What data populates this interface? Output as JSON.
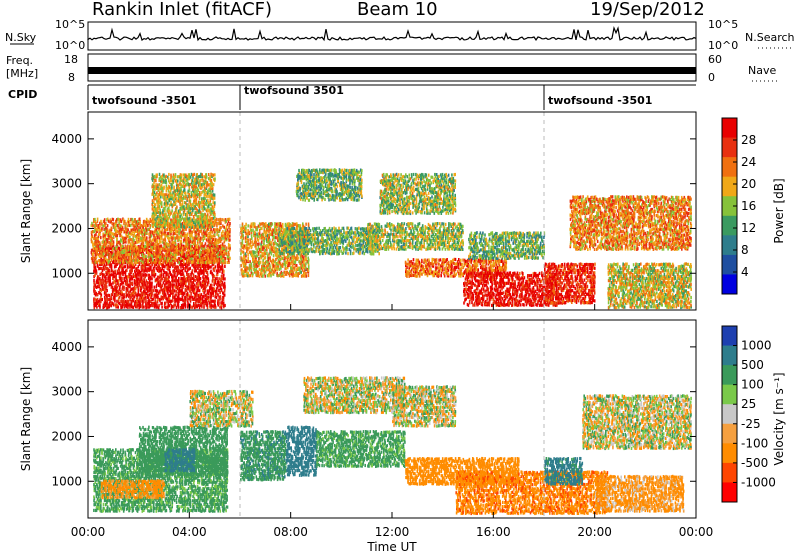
{
  "header": {
    "station": "Rankin Inlet (fitACF)",
    "beam": "Beam 10",
    "date": "19/Sep/2012"
  },
  "noise_panel": {
    "left_label": "N.Sky",
    "right_label": "N.Search",
    "left_ticks": [
      "10^5",
      "10^0"
    ],
    "right_ticks": [
      "10^5",
      "10^0"
    ]
  },
  "freq_panel": {
    "left_label_1": "Freq.",
    "left_label_2": "[MHz]",
    "right_label": "Nave",
    "left_ticks": [
      "18",
      "8"
    ],
    "right_ticks": [
      "60",
      "0"
    ]
  },
  "cpid_panel": {
    "label": "CPID",
    "segments": [
      {
        "start_hour": 0.0,
        "text": "twofsound -3501"
      },
      {
        "start_hour": 6.0,
        "text": "twofsound 3501"
      },
      {
        "start_hour": 18.0,
        "text": "twofsound -3501"
      }
    ]
  },
  "x_axis": {
    "label": "Time UT",
    "ticks": [
      "00:00",
      "04:00",
      "08:00",
      "12:00",
      "16:00",
      "20:00",
      "00:00"
    ],
    "range_hours": [
      0,
      24
    ]
  },
  "colors": {
    "power": [
      "#0000e0",
      "#1f4fa0",
      "#2e7d8c",
      "#3a9a60",
      "#86c23a",
      "#f0a818",
      "#f07010",
      "#e83010",
      "#e80000"
    ],
    "velocity": [
      "#ff0000",
      "#ff4500",
      "#ff8c00",
      "#f5a040",
      "#c8c8c8",
      "#7ac94a",
      "#3a9a5a",
      "#2e7d8c",
      "#1e40b0"
    ]
  },
  "chart_data": [
    {
      "type": "heatmap",
      "title": "Power",
      "xlabel": "Time UT",
      "ylabel": "Slant Range [km]",
      "xlim": [
        0,
        24
      ],
      "ylim": [
        180,
        4600
      ],
      "yticks": [
        "1000",
        "2000",
        "3000",
        "4000"
      ],
      "colorbar_label": "Power [dB]",
      "colorbar_ticks": [
        "28",
        "24",
        "20",
        "16",
        "12",
        "8",
        "4"
      ],
      "bands": [
        {
          "t0": 0.2,
          "t1": 5.4,
          "r0": 200,
          "r1": 1600,
          "value": 28
        },
        {
          "t0": 0.1,
          "t1": 5.6,
          "r0": 1200,
          "r1": 2200,
          "value": 20
        },
        {
          "t0": 2.5,
          "t1": 5.0,
          "r0": 2000,
          "r1": 3200,
          "value": 16
        },
        {
          "t0": 6.0,
          "t1": 8.7,
          "r0": 900,
          "r1": 2100,
          "value": 18
        },
        {
          "t0": 7.5,
          "t1": 11.5,
          "r0": 1400,
          "r1": 2000,
          "value": 12
        },
        {
          "t0": 8.2,
          "t1": 10.8,
          "r0": 2600,
          "r1": 3300,
          "value": 12
        },
        {
          "t0": 11.0,
          "t1": 14.8,
          "r0": 1500,
          "r1": 2100,
          "value": 14
        },
        {
          "t0": 11.5,
          "t1": 14.5,
          "r0": 2300,
          "r1": 3200,
          "value": 14
        },
        {
          "t0": 12.5,
          "t1": 16.5,
          "r0": 900,
          "r1": 1300,
          "value": 22
        },
        {
          "t0": 14.8,
          "t1": 18.5,
          "r0": 250,
          "r1": 1000,
          "value": 28
        },
        {
          "t0": 15.0,
          "t1": 18.0,
          "r0": 1300,
          "r1": 1900,
          "value": 12
        },
        {
          "t0": 18.0,
          "t1": 20.0,
          "r0": 300,
          "r1": 1200,
          "value": 26
        },
        {
          "t0": 19.0,
          "t1": 23.8,
          "r0": 1500,
          "r1": 2700,
          "value": 20
        },
        {
          "t0": 20.5,
          "t1": 23.8,
          "r0": 200,
          "r1": 1200,
          "value": 16
        }
      ]
    },
    {
      "type": "heatmap",
      "title": "Velocity",
      "xlabel": "Time UT",
      "ylabel": "Slant Range [km]",
      "xlim": [
        0,
        24
      ],
      "ylim": [
        180,
        4600
      ],
      "yticks": [
        "1000",
        "2000",
        "3000",
        "4000"
      ],
      "colorbar_label": "Velocity [m s⁻¹]",
      "colorbar_ticks": [
        "1000",
        "500",
        "100",
        "25",
        "-25",
        "-100",
        "-500",
        "-1000"
      ],
      "bands": [
        {
          "t0": 0.2,
          "t1": 5.5,
          "r0": 300,
          "r1": 1700,
          "value": 200
        },
        {
          "t0": 0.5,
          "t1": 3.0,
          "r0": 600,
          "r1": 1000,
          "value": -200
        },
        {
          "t0": 2.0,
          "t1": 5.5,
          "r0": 1100,
          "r1": 2200,
          "value": 300
        },
        {
          "t0": 3.0,
          "t1": 4.2,
          "r0": 1200,
          "r1": 1700,
          "value": 800
        },
        {
          "t0": 6.0,
          "t1": 7.8,
          "r0": 1000,
          "r1": 2100,
          "value": 400
        },
        {
          "t0": 7.8,
          "t1": 9.0,
          "r0": 1100,
          "r1": 2200,
          "value": 800
        },
        {
          "t0": 9.0,
          "t1": 12.5,
          "r0": 1300,
          "r1": 2100,
          "value": 200
        },
        {
          "t0": 4.0,
          "t1": 6.5,
          "r0": 2200,
          "r1": 3000,
          "value": 0
        },
        {
          "t0": 8.5,
          "t1": 12.5,
          "r0": 2500,
          "r1": 3300,
          "value": 0
        },
        {
          "t0": 12.0,
          "t1": 14.5,
          "r0": 2200,
          "r1": 3100,
          "value": 0
        },
        {
          "t0": 12.5,
          "t1": 17.0,
          "r0": 900,
          "r1": 1500,
          "value": -300
        },
        {
          "t0": 14.5,
          "t1": 20.5,
          "r0": 250,
          "r1": 1200,
          "value": -400
        },
        {
          "t0": 18.0,
          "t1": 19.5,
          "r0": 900,
          "r1": 1500,
          "value": 600
        },
        {
          "t0": 19.5,
          "t1": 23.8,
          "r0": 1700,
          "r1": 2900,
          "value": 0
        },
        {
          "t0": 20.0,
          "t1": 23.5,
          "r0": 300,
          "r1": 1100,
          "value": -150
        }
      ]
    }
  ]
}
